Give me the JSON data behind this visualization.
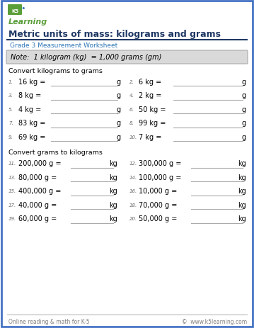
{
  "title": "Metric units of mass: kilograms and grams",
  "subtitle": "Grade 3 Measurement Worksheet",
  "note": "Note:  1 kilogram (kg)  = 1,000 grams (gm)",
  "section1_header": "Convert kilograms to grams",
  "section2_header": "Convert grams to kilograms",
  "section1_problems": [
    [
      "1.",
      "16 kg =",
      "g"
    ],
    [
      "2.",
      "6 kg =",
      "g"
    ],
    [
      "3.",
      "8 kg =",
      "g"
    ],
    [
      "4.",
      "2 kg =",
      "g"
    ],
    [
      "5.",
      "4 kg =",
      "g"
    ],
    [
      "6.",
      "50 kg =",
      "g"
    ],
    [
      "7.",
      "83 kg =",
      "g"
    ],
    [
      "8.",
      "99 kg =",
      "g"
    ],
    [
      "9.",
      "69 kg =",
      "g"
    ],
    [
      "10.",
      "7 kg =",
      "g"
    ]
  ],
  "section2_problems": [
    [
      "11.",
      "200,000 g =",
      "kg"
    ],
    [
      "12.",
      "300,000 g =",
      "kg"
    ],
    [
      "13.",
      "80,000 g =",
      "kg"
    ],
    [
      "14.",
      "100,000 g =",
      "kg"
    ],
    [
      "15.",
      "400,000 g =",
      "kg"
    ],
    [
      "16.",
      "10,000 g =",
      "kg"
    ],
    [
      "17.",
      "40,000 g =",
      "kg"
    ],
    [
      "18.",
      "70,000 g =",
      "kg"
    ],
    [
      "19.",
      "60,000 g =",
      "kg"
    ],
    [
      "20.",
      "50,000 g =",
      "kg"
    ]
  ],
  "footer_left": "Online reading & math for K-5",
  "footer_right": "©  www.k5learning.com",
  "bg_color": "#ffffff",
  "border_color": "#4472c4",
  "title_color": "#1f3864",
  "subtitle_color": "#2e75b6",
  "note_bg_color": "#d9d9d9",
  "note_text_color": "#000000",
  "section_header_color": "#000000",
  "problem_text_color": "#000000",
  "line_color": "#aaaaaa",
  "footer_color": "#808080",
  "header_line_color": "#1f3864"
}
